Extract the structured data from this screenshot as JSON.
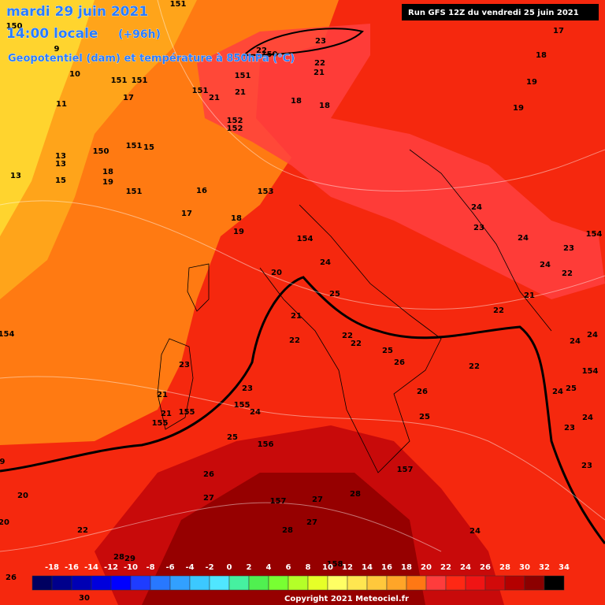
{
  "header": {
    "date": "mardi 29 juin 2021",
    "time": "14:00 locale",
    "lead": "(+96h)",
    "subtitle": "Geopotentiel (dam) et température à 850hPa (°C)",
    "run": "Run GFS 12Z du vendredi 25 juin 2021"
  },
  "map_labels": [
    "151",
    "150",
    "9",
    "10",
    "151",
    "151",
    "17",
    "11",
    "151",
    "21",
    "21",
    "151",
    "150",
    "22",
    "23",
    "22",
    "21",
    "18",
    "18",
    "17",
    "18",
    "19",
    "19",
    "152",
    "152",
    "150",
    "151",
    "15",
    "13",
    "13",
    "13",
    "15",
    "18",
    "19",
    "151",
    "16",
    "153",
    "17",
    "18",
    "19",
    "154",
    "24",
    "23",
    "24",
    "154",
    "23",
    "24",
    "22",
    "24",
    "20",
    "21",
    "25",
    "22",
    "21",
    "154",
    "22",
    "22",
    "22",
    "25",
    "26",
    "24",
    "24",
    "22",
    "154",
    "23",
    "26",
    "24",
    "25",
    "21",
    "23",
    "155",
    "24",
    "21",
    "155",
    "25",
    "24",
    "155",
    "23",
    "25",
    "156",
    "9",
    "23",
    "157",
    "26",
    "20",
    "27",
    "28",
    "157",
    "27",
    "20",
    "27",
    "28",
    "22",
    "24",
    "158",
    "26",
    "30",
    "28",
    "29"
  ],
  "colorbar": {
    "labels": [
      -18,
      -16,
      -14,
      -12,
      -10,
      -8,
      -6,
      -4,
      -2,
      0,
      2,
      4,
      6,
      8,
      10,
      12,
      14,
      16,
      18,
      20,
      22,
      24,
      26,
      28,
      30,
      32,
      34
    ],
    "colors": [
      "#000060",
      "#00008c",
      "#0000b4",
      "#0000dc",
      "#0000ff",
      "#1e3cff",
      "#2878ff",
      "#32a0ff",
      "#3cc8ff",
      "#50e6ff",
      "#46f0a0",
      "#50f050",
      "#78ff32",
      "#b4ff28",
      "#e6ff28",
      "#ffff64",
      "#ffe650",
      "#ffc83c",
      "#ffa528",
      "#ff7814",
      "#ff3c3c",
      "#ff2814",
      "#f01414",
      "#d20a0a",
      "#b40000",
      "#8c0000",
      "#000000"
    ]
  },
  "footer": {
    "copyright": "Copyright 2021 Meteociel.fr"
  }
}
